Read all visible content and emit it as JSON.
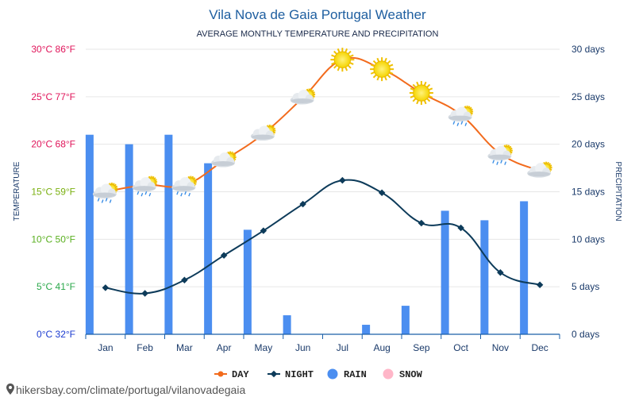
{
  "title": "Vila Nova de Gaia Portugal Weather",
  "subtitle": "AVERAGE MONTHLY TEMPERATURE AND PRECIPITATION",
  "footer": "hikersbay.com/climate/portugal/vilanovadegaia",
  "colors": {
    "day": "#f26b1d",
    "night": "#0d3b5a",
    "rain": "#4b8ef0",
    "snow": "#ffb6c8",
    "grid": "#e6e6e6",
    "axis": "#1a5fa8"
  },
  "chart_data": {
    "type": "line",
    "categories": [
      "Jan",
      "Feb",
      "Mar",
      "Apr",
      "May",
      "Jun",
      "Jul",
      "Aug",
      "Sep",
      "Oct",
      "Nov",
      "Dec"
    ],
    "series": [
      {
        "name": "DAY",
        "values": [
          15.0,
          15.7,
          15.7,
          18.3,
          21.1,
          24.9,
          28.9,
          27.9,
          25.4,
          23.1,
          19.0,
          17.2
        ]
      },
      {
        "name": "NIGHT",
        "values": [
          4.9,
          4.3,
          5.7,
          8.3,
          10.9,
          13.7,
          16.2,
          14.9,
          11.7,
          11.2,
          6.5,
          5.2
        ]
      },
      {
        "name": "RAIN",
        "values": [
          21,
          20,
          21,
          18,
          11,
          2,
          0,
          1,
          3,
          13,
          12,
          14
        ]
      },
      {
        "name": "SNOW",
        "values": [
          0,
          0,
          0,
          0,
          0,
          0,
          0,
          0,
          0,
          0,
          0,
          0
        ]
      }
    ],
    "left_axis": {
      "label": "TEMPERATURE",
      "ylim": [
        0,
        30
      ],
      "ticks": [
        {
          "value": 0,
          "label": "0°C 32°F",
          "color": "#1a3ad0"
        },
        {
          "value": 5,
          "label": "5°C 41°F",
          "color": "#2aa84a"
        },
        {
          "value": 10,
          "label": "10°C 50°F",
          "color": "#5ab020"
        },
        {
          "value": 15,
          "label": "15°C 59°F",
          "color": "#7ab010"
        },
        {
          "value": 20,
          "label": "20°C 68°F",
          "color": "#e0145a"
        },
        {
          "value": 25,
          "label": "25°C 77°F",
          "color": "#e0145a"
        },
        {
          "value": 30,
          "label": "30°C 86°F",
          "color": "#e0145a"
        }
      ]
    },
    "right_axis": {
      "label": "PRECIPITATION",
      "ylim": [
        0,
        30
      ],
      "ticks": [
        {
          "value": 0,
          "label": "0 days"
        },
        {
          "value": 5,
          "label": "5 days"
        },
        {
          "value": 10,
          "label": "10 days"
        },
        {
          "value": 15,
          "label": "15 days"
        },
        {
          "value": 20,
          "label": "20 days"
        },
        {
          "value": 25,
          "label": "25 days"
        },
        {
          "value": 30,
          "label": "30 days"
        }
      ]
    },
    "weather_icons": [
      "sun-cloud-rain",
      "sun-cloud-rain",
      "sun-cloud-rain",
      "sun-cloud",
      "sun-cloud",
      "sun-cloud",
      "sun",
      "sun",
      "sun",
      "sun-cloud-rain",
      "sun-cloud-rain",
      "sun-cloud"
    ],
    "legend": {
      "placement": "bottom-center",
      "items": [
        {
          "label": "DAY",
          "symbol": "line-dot",
          "color": "#f26b1d"
        },
        {
          "label": "NIGHT",
          "symbol": "line-diamond",
          "color": "#0d3b5a"
        },
        {
          "label": "RAIN",
          "symbol": "dot",
          "color": "#4b8ef0"
        },
        {
          "label": "SNOW",
          "symbol": "dot",
          "color": "#ffb6c8"
        }
      ]
    },
    "grid": true
  }
}
